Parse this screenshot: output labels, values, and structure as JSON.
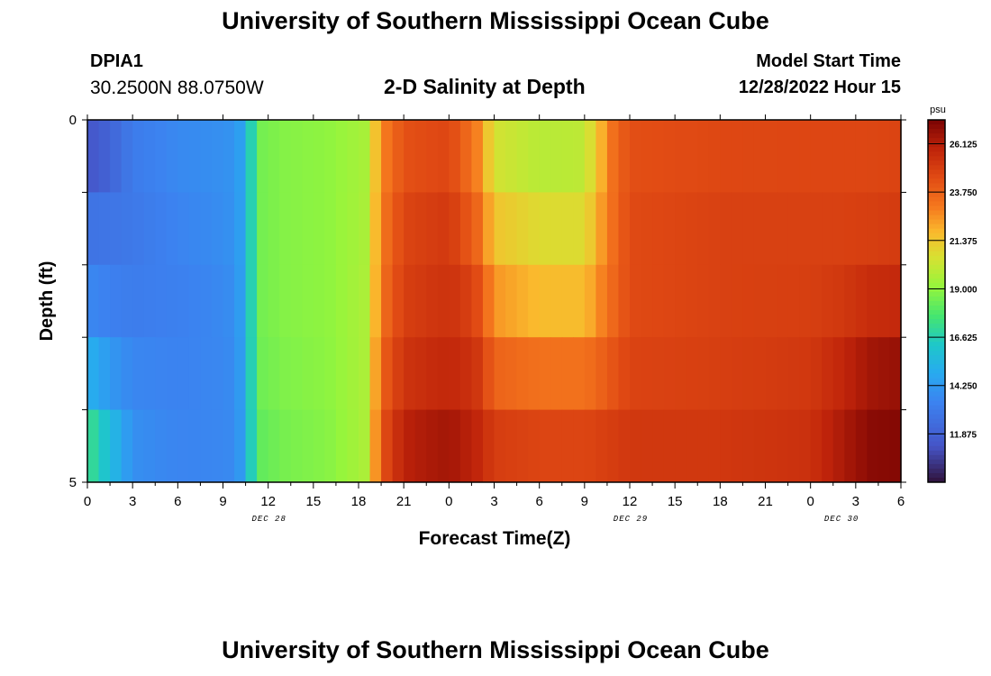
{
  "header": {
    "title": "University of Southern Mississippi Ocean Cube",
    "station_id": "DPIA1",
    "station_coords": "30.2500N  88.0750W",
    "plot_title": "2-D Salinity at Depth",
    "model_start_label": "Model Start Time",
    "model_start_value": "12/28/2022 Hour 15"
  },
  "footer": {
    "title": "University of Southern Mississippi Ocean Cube"
  },
  "chart_data": {
    "type": "heatmap",
    "title": "2-D Salinity at Depth",
    "xlabel": "Forecast Time(Z)",
    "ylabel": "Depth (ft)",
    "x_tick_labels": [
      "0",
      "3",
      "6",
      "9",
      "12",
      "15",
      "18",
      "21",
      "0",
      "3",
      "6",
      "9",
      "12",
      "15",
      "18",
      "21",
      "0",
      "3",
      "6"
    ],
    "x_tick_hours": [
      0,
      3,
      6,
      9,
      12,
      15,
      18,
      21,
      24,
      27,
      30,
      33,
      36,
      39,
      42,
      45,
      48,
      51,
      54
    ],
    "x_minor_ticks_every_hours": 1.5,
    "date_labels": [
      {
        "label": "DEC 28",
        "hour": 12
      },
      {
        "label": "DEC 29",
        "hour": 36
      },
      {
        "label": "DEC 30",
        "hour": 50
      }
    ],
    "xlim_hours": [
      0,
      54
    ],
    "y_tick_labels": [
      "0",
      "5"
    ],
    "ylim_ft": [
      0,
      5
    ],
    "depth_levels_ft": [
      0,
      1,
      2,
      3,
      4,
      5
    ],
    "colorbar": {
      "unit": "psu",
      "min": 9.5,
      "max": 27.3,
      "tick_values": [
        11.875,
        14.25,
        16.625,
        19.0,
        21.375,
        23.75,
        26.125
      ],
      "tick_labels": [
        "11.875",
        "14.250",
        "16.625",
        "19.000",
        "21.375",
        "23.750",
        "26.125"
      ]
    },
    "salinity_profiles": {
      "description_hours": [
        0,
        1.5,
        3,
        6,
        9,
        10,
        10.5,
        11.5,
        13,
        16,
        18.5,
        19.5,
        21,
        22.5,
        24,
        25,
        26,
        27,
        30,
        33,
        34,
        35,
        36,
        42,
        48,
        50,
        52,
        54
      ],
      "hours": [
        0,
        1.5,
        3,
        6,
        9,
        10,
        10.5,
        11.5,
        13,
        16,
        18.5,
        19.5,
        21,
        22.5,
        24,
        25,
        26,
        27,
        30,
        33,
        34,
        35,
        36,
        42,
        48,
        50,
        52,
        54
      ],
      "depth_0": [
        10.5,
        11.5,
        13.2,
        13.7,
        13.9,
        14.1,
        15.5,
        18.5,
        18.8,
        19.0,
        19.5,
        22.5,
        24.0,
        24.2,
        24.3,
        23.5,
        22.5,
        20.0,
        19.3,
        19.5,
        21.5,
        23.5,
        24.2,
        24.4,
        24.5,
        24.5,
        24.5,
        24.5
      ],
      "depth_1": [
        12.3,
        12.6,
        13.0,
        13.6,
        13.9,
        14.1,
        15.5,
        18.5,
        18.8,
        19.0,
        19.5,
        23.0,
        24.6,
        24.8,
        25.0,
        24.0,
        23.0,
        21.0,
        20.5,
        20.5,
        22.0,
        23.5,
        24.5,
        24.8,
        24.8,
        24.8,
        24.8,
        25.0
      ],
      "depth_2": [
        13.3,
        13.1,
        13.0,
        13.3,
        13.7,
        14.0,
        15.5,
        18.5,
        18.8,
        19.0,
        19.6,
        23.0,
        24.8,
        25.0,
        25.2,
        24.8,
        24.0,
        22.0,
        21.0,
        21.0,
        22.5,
        23.5,
        24.5,
        24.8,
        24.8,
        24.8,
        25.0,
        25.0
      ],
      "depth_3": [
        14.0,
        13.6,
        13.4,
        13.4,
        13.6,
        13.9,
        15.5,
        18.5,
        18.8,
        19.0,
        19.6,
        23.5,
        25.0,
        25.3,
        25.5,
        25.3,
        24.8,
        23.0,
        22.5,
        22.5,
        23.0,
        23.8,
        24.5,
        24.8,
        25.0,
        25.5,
        26.2,
        26.5
      ],
      "depth_4": [
        16.5,
        15.0,
        13.8,
        13.5,
        13.6,
        13.8,
        15.5,
        18.3,
        18.6,
        18.9,
        19.6,
        24.0,
        25.6,
        25.8,
        26.0,
        25.8,
        25.5,
        24.5,
        24.2,
        24.2,
        24.5,
        24.8,
        25.0,
        25.0,
        25.3,
        26.0,
        26.8,
        27.0
      ],
      "depth_5": [
        18.5,
        16.5,
        14.0,
        13.5,
        13.6,
        13.7,
        15.5,
        18.0,
        18.5,
        18.8,
        19.6,
        24.5,
        26.3,
        26.8,
        27.0,
        26.5,
        26.0,
        25.5,
        25.2,
        25.2,
        25.2,
        25.2,
        25.3,
        25.3,
        25.5,
        26.5,
        27.2,
        27.2
      ]
    }
  }
}
